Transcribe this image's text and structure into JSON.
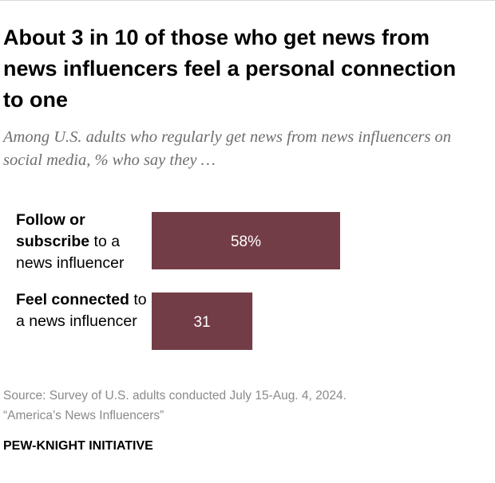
{
  "title": "About 3 in 10 of those who get news from news influencers feel a personal connection to one",
  "subtitle": "Among U.S. adults who regularly get news from news influencers on social media, % who say they …",
  "colors": {
    "bar": "#733d47",
    "bar_label": "#ffffff",
    "source_text": "#8a8a8a"
  },
  "chart_data": {
    "type": "bar",
    "orientation": "horizontal",
    "categories": [
      "Follow or subscribe to a news influencer",
      "Feel connected to a news influencer"
    ],
    "category_label_parts": [
      {
        "bold": "Follow or subscribe",
        "rest": " to a news influencer"
      },
      {
        "bold": "Feel connected",
        "rest": " to a news influencer"
      }
    ],
    "values": [
      58,
      31
    ],
    "data_labels": [
      "58%",
      "31"
    ],
    "xlim": [
      0,
      100
    ],
    "grid": false,
    "legend": "none"
  },
  "source": {
    "line1": "Source: Survey of U.S. adults conducted July 15-Aug. 4, 2024.",
    "line2": "“America’s News Influencers”"
  },
  "brand": "PEW-KNIGHT INITIATIVE"
}
